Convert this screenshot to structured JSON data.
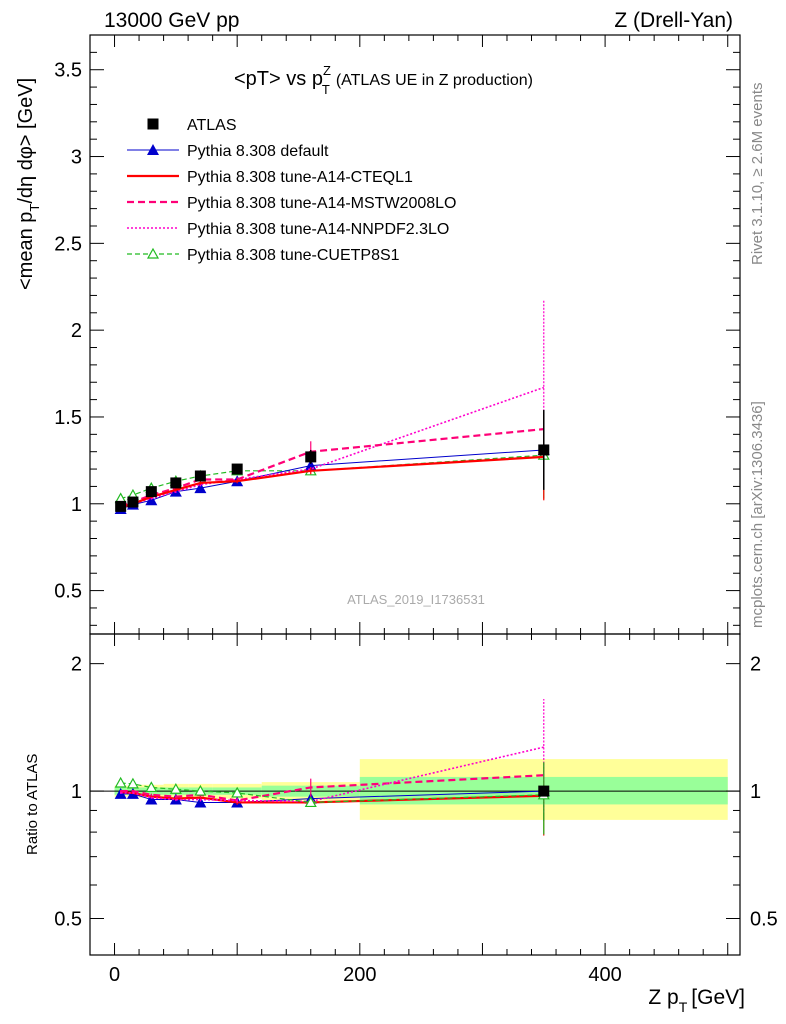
{
  "header": {
    "left": "13000 GeV pp",
    "right": "Z (Drell-Yan)"
  },
  "side": {
    "rivet": "Rivet 3.1.10, ≥ 2.6M events",
    "mcplots": "mcplots.cern.ch [arXiv:1306.3436]"
  },
  "chart_data": [
    {
      "type": "line",
      "title": "<pT> vs pTZ (ATLAS UE in Z production)",
      "title_main": "<pT> vs p",
      "title_sup": "Z",
      "title_sub": "T",
      "title_rest": "(ATLAS UE in Z production)",
      "xlabel": "Z pT [GeV]",
      "ylabel": "<mean pT/dη dφ> [GeV]",
      "watermark": "ATLAS_2019_I1736531",
      "xlim": [
        -20,
        510
      ],
      "ylim": [
        0.25,
        3.7
      ],
      "yticks": [
        "0.5",
        "1",
        "1.5",
        "2",
        "2.5",
        "3",
        "3.5"
      ],
      "x": [
        5,
        15,
        30,
        50,
        70,
        100,
        160,
        350
      ],
      "series": [
        {
          "name": "ATLAS",
          "color": "#000000",
          "style": "data",
          "marker": "square",
          "values": [
            0.985,
            1.01,
            1.07,
            1.12,
            1.16,
            1.2,
            1.27,
            1.31
          ],
          "err": [
            0.02,
            0.02,
            0.02,
            0.02,
            0.02,
            0.025,
            0.04,
            0.23
          ]
        },
        {
          "name": "Pythia 8.308 default",
          "color": "#0000cc",
          "style": "solid",
          "width": 1,
          "marker": "triangle",
          "values": [
            0.97,
            0.995,
            1.02,
            1.07,
            1.09,
            1.13,
            1.22,
            1.31
          ],
          "err": [
            0.005,
            0.005,
            0.006,
            0.008,
            0.01,
            0.012,
            0.02,
            0.2
          ]
        },
        {
          "name": "Pythia 8.308 tune-A14-CTEQL1",
          "color": "#ff0000",
          "style": "solid",
          "width": 2.2,
          "marker": "none",
          "values": [
            0.98,
            1.0,
            1.04,
            1.08,
            1.12,
            1.13,
            1.19,
            1.27
          ],
          "err": [
            0.005,
            0.005,
            0.006,
            0.008,
            0.01,
            0.012,
            0.02,
            0.25
          ]
        },
        {
          "name": "Pythia 8.308 tune-A14-MSTW2008LO",
          "color": "#ff0077",
          "style": "dashed",
          "width": 2.2,
          "marker": "none",
          "values": [
            0.985,
            1.01,
            1.05,
            1.09,
            1.14,
            1.14,
            1.3,
            1.43
          ],
          "err": [
            0.005,
            0.005,
            0.006,
            0.008,
            0.01,
            0.012,
            0.06,
            0.1
          ]
        },
        {
          "name": "Pythia 8.308 tune-A14-NNPDF2.3LO",
          "color": "#ff00cc",
          "style": "dotted",
          "width": 1.6,
          "marker": "none",
          "values": [
            0.975,
            1.0,
            1.03,
            1.07,
            1.11,
            1.14,
            1.2,
            1.67
          ],
          "err": [
            0.005,
            0.005,
            0.006,
            0.008,
            0.01,
            0.012,
            0.02,
            0.5
          ]
        },
        {
          "name": "Pythia 8.308 tune-CUETP8S1",
          "color": "#22bb22",
          "style": "dashed-thin",
          "width": 1.2,
          "marker": "triangle-open",
          "values": [
            1.03,
            1.05,
            1.09,
            1.13,
            1.16,
            1.19,
            1.19,
            1.28
          ],
          "err": [
            0.005,
            0.005,
            0.006,
            0.008,
            0.01,
            0.012,
            0.02,
            0.25
          ]
        }
      ]
    },
    {
      "type": "line",
      "ylabel": "Ratio to ATLAS",
      "ylim": [
        0.41,
        2.35
      ],
      "log_y": true,
      "yticks": [
        "0.5",
        "1",
        "2"
      ],
      "xticks": [
        "0",
        "200",
        "400"
      ],
      "bands": [
        {
          "x": [
            0,
            10
          ],
          "inner": [
            0.98,
            1.02
          ],
          "outer": [
            0.97,
            1.03
          ]
        },
        {
          "x": [
            10,
            20
          ],
          "inner": [
            0.98,
            1.02
          ],
          "outer": [
            0.97,
            1.03
          ]
        },
        {
          "x": [
            20,
            40
          ],
          "inner": [
            0.98,
            1.02
          ],
          "outer": [
            0.965,
            1.035
          ]
        },
        {
          "x": [
            40,
            60
          ],
          "inner": [
            0.98,
            1.02
          ],
          "outer": [
            0.965,
            1.04
          ]
        },
        {
          "x": [
            60,
            80
          ],
          "inner": [
            0.98,
            1.02
          ],
          "outer": [
            0.965,
            1.04
          ]
        },
        {
          "x": [
            80,
            120
          ],
          "inner": [
            0.98,
            1.02
          ],
          "outer": [
            0.96,
            1.04
          ]
        },
        {
          "x": [
            120,
            200
          ],
          "inner": [
            0.97,
            1.03
          ],
          "outer": [
            0.95,
            1.05
          ]
        },
        {
          "x": [
            200,
            500
          ],
          "inner": [
            0.93,
            1.08
          ],
          "outer": [
            0.855,
            1.19
          ]
        }
      ],
      "series": [
        {
          "name": "Pythia 8.308 default",
          "values": [
            0.985,
            0.985,
            0.955,
            0.955,
            0.94,
            0.94,
            0.96,
            1.0
          ],
          "err": [
            0.005,
            0.005,
            0.006,
            0.008,
            0.01,
            0.012,
            0.02,
            0.15
          ]
        },
        {
          "name": "Pythia 8.308 tune-A14-CTEQL1",
          "values": [
            0.995,
            0.99,
            0.97,
            0.96,
            0.965,
            0.94,
            0.94,
            0.975
          ],
          "err": [
            0.005,
            0.005,
            0.006,
            0.008,
            0.01,
            0.012,
            0.02,
            0.19
          ]
        },
        {
          "name": "Pythia 8.308 tune-A14-MSTW2008LO",
          "values": [
            1.0,
            1.0,
            0.98,
            0.97,
            0.98,
            0.95,
            1.02,
            1.09
          ],
          "err": [
            0.005,
            0.005,
            0.006,
            0.008,
            0.01,
            0.012,
            0.05,
            0.08
          ]
        },
        {
          "name": "Pythia 8.308 tune-A14-NNPDF2.3LO",
          "values": [
            0.99,
            0.99,
            0.965,
            0.955,
            0.955,
            0.95,
            0.945,
            1.27
          ],
          "err": [
            0.005,
            0.005,
            0.006,
            0.008,
            0.01,
            0.012,
            0.02,
            0.38
          ]
        },
        {
          "name": "Pythia 8.308 tune-CUETP8S1",
          "values": [
            1.045,
            1.04,
            1.02,
            1.01,
            1.0,
            0.99,
            0.94,
            0.98
          ],
          "err": [
            0.005,
            0.005,
            0.006,
            0.008,
            0.01,
            0.012,
            0.02,
            0.19
          ]
        }
      ]
    }
  ]
}
